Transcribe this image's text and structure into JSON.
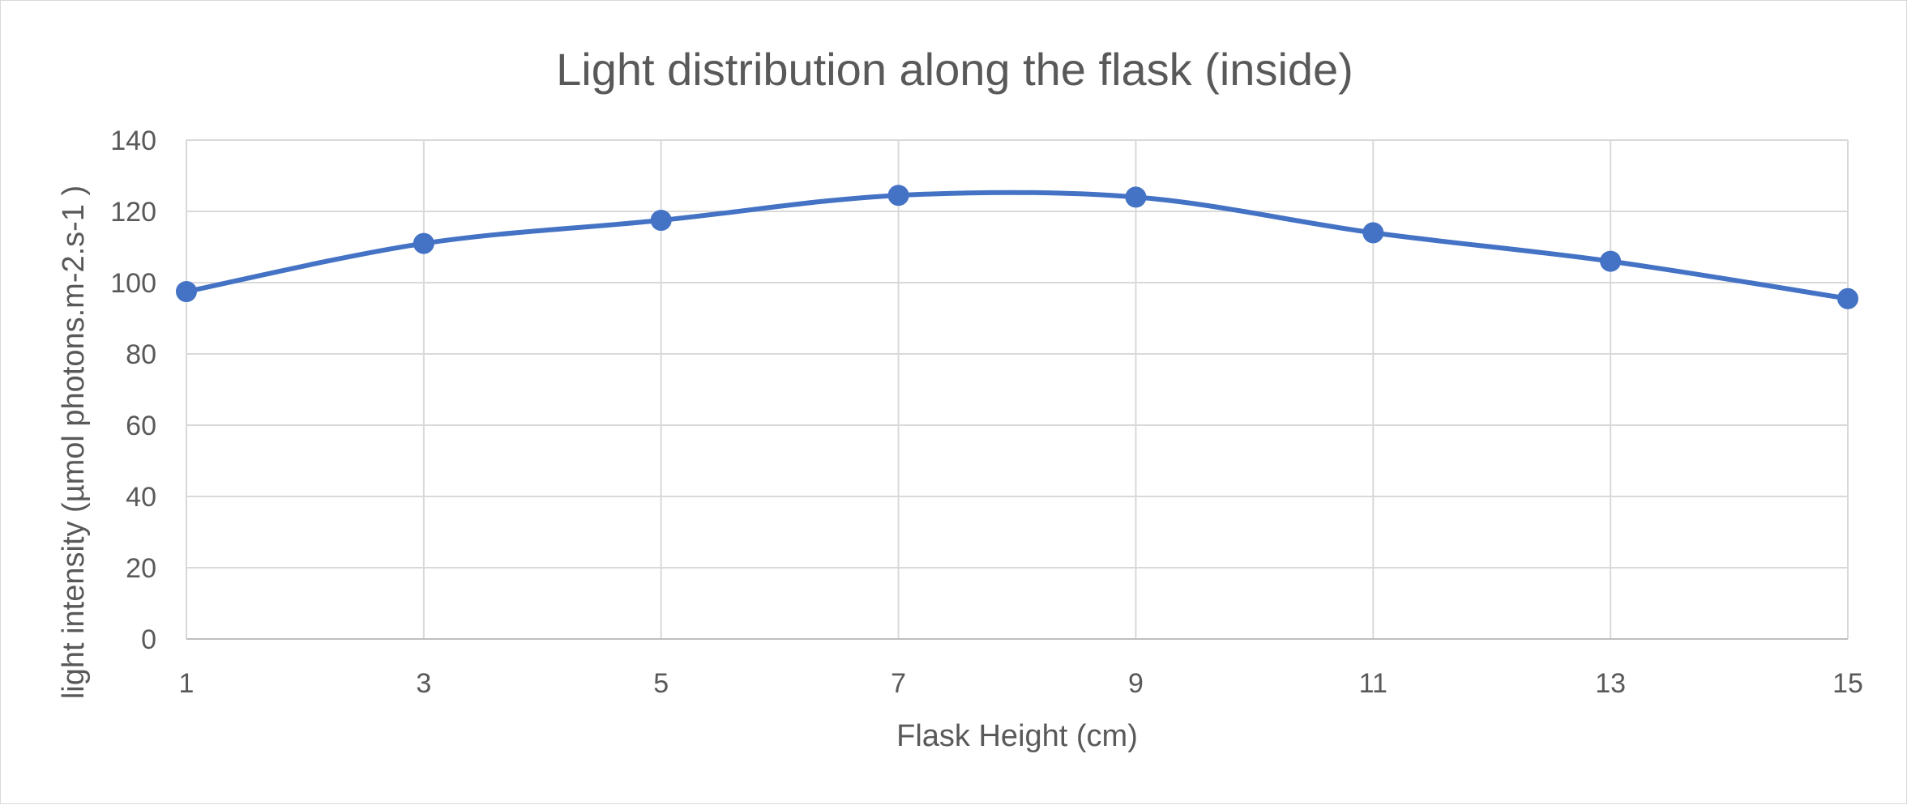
{
  "chart_data": {
    "type": "line",
    "title": "Light distribution along the flask (inside)",
    "xlabel": "Flask Height (cm)",
    "ylabel": "light intensity  (µmol photons.m-2.s-1 )",
    "x": [
      1,
      3,
      5,
      7,
      9,
      11,
      13,
      15
    ],
    "x_tick_labels": [
      "1",
      "3",
      "5",
      "7",
      "9",
      "11",
      "13",
      "15"
    ],
    "y_tick_labels": [
      "0",
      "20",
      "40",
      "60",
      "80",
      "100",
      "120",
      "140"
    ],
    "ylim": [
      0,
      140
    ],
    "grid": true,
    "smooth": true,
    "series": [
      {
        "values": [
          97.5,
          111,
          117.5,
          124.5,
          124,
          114,
          106,
          95.5
        ],
        "color": "#4472c4"
      }
    ]
  }
}
